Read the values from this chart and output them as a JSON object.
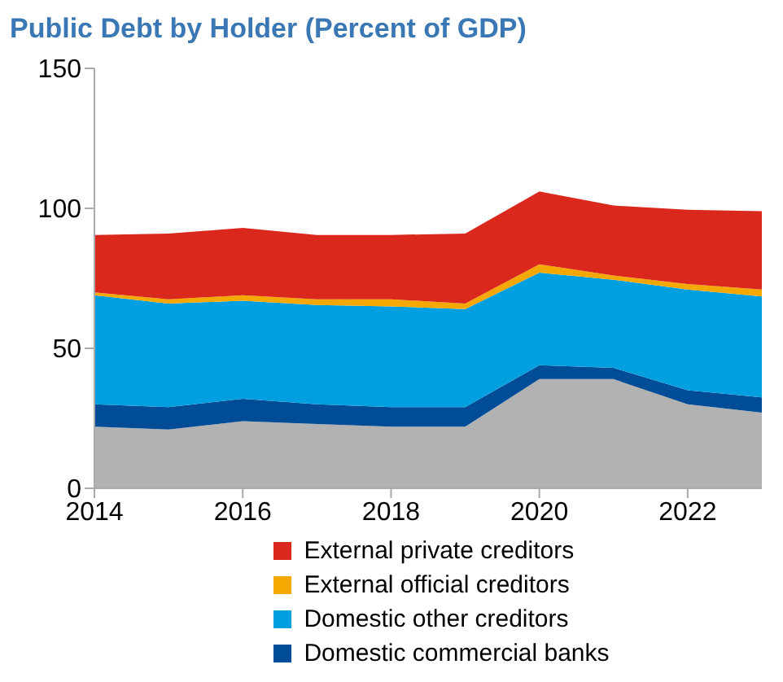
{
  "chart_data": {
    "type": "area",
    "title": "Public Debt by Holder (Percent of GDP)",
    "stacked": true,
    "x": [
      2014,
      2015,
      2016,
      2017,
      2018,
      2019,
      2020,
      2021,
      2022,
      2023
    ],
    "xlim": [
      2014,
      2023
    ],
    "xticks": [
      2014,
      2016,
      2018,
      2020,
      2022
    ],
    "ylim": [
      0,
      150
    ],
    "yticks": [
      0,
      50,
      100,
      150
    ],
    "grid": false,
    "legend": "bottom",
    "series": [
      {
        "color": "#b2b2b2",
        "values": [
          22,
          21,
          24,
          23,
          22,
          22,
          39,
          39,
          30,
          27
        ]
      },
      {
        "name": "Domestic commercial banks",
        "color": "#004c97",
        "values": [
          8,
          8,
          8,
          7,
          7,
          7,
          5,
          4,
          5,
          5.5
        ]
      },
      {
        "name": "Domestic other creditors",
        "color": "#009fdf",
        "values": [
          39,
          37,
          35,
          35.5,
          36,
          35,
          33,
          31.5,
          36,
          36
        ]
      },
      {
        "name": "External official creditors",
        "color": "#f5a800",
        "values": [
          1,
          1.5,
          2,
          2,
          2.5,
          2,
          3,
          1.5,
          2,
          2.5
        ]
      },
      {
        "name": "External private creditors",
        "color": "#da291c",
        "values": [
          20.5,
          23.5,
          24,
          23,
          23,
          25,
          26,
          25,
          26.5,
          28
        ]
      }
    ]
  }
}
